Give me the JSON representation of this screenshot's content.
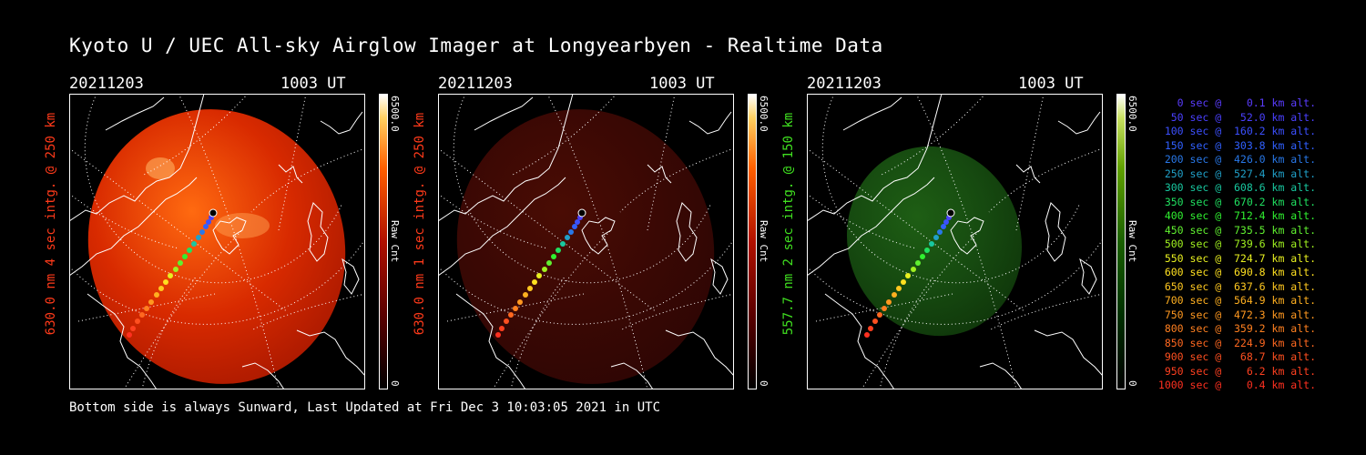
{
  "title": "Kyoto U / UEC All-sky Airglow Imager at Longyearbyen - Realtime Data",
  "panels": [
    {
      "date": "20211203",
      "time": "1003 UT",
      "ylabel": "630.0 nm 4 sec intg. @ 250 km",
      "ylabel_color": "#ff3a1a",
      "cbar_max": "6500.0",
      "cbar_min": "0",
      "cbar_unit": "Raw Cnt",
      "colormap": "red-bright"
    },
    {
      "date": "20211203",
      "time": "1003 UT",
      "ylabel": "630.0 nm 1 sec intg. @ 250 km",
      "ylabel_color": "#ff3a1a",
      "cbar_max": "6500.0",
      "cbar_min": "0",
      "cbar_unit": "Raw Cnt",
      "colormap": "red-dim"
    },
    {
      "date": "20211203",
      "time": "1003 UT",
      "ylabel": "557.7 nm 2 sec intg. @ 150 km",
      "ylabel_color": "#40e020",
      "cbar_max": "6500.0",
      "cbar_min": "0",
      "cbar_unit": "Raw Cnt",
      "colormap": "green"
    }
  ],
  "footer": "Bottom side is always Sunward, Last Updated at Fri Dec  3 10:03:05 2021 in UTC",
  "legend": [
    {
      "text": "   0 sec @    0.1 km alt.",
      "color": "#5a3cff"
    },
    {
      "text": "  50 sec @   52.0 km alt.",
      "color": "#4a40ff"
    },
    {
      "text": " 100 sec @  160.2 km alt.",
      "color": "#3c50ff"
    },
    {
      "text": " 150 sec @  303.8 km alt.",
      "color": "#3060ff"
    },
    {
      "text": " 200 sec @  426.0 km alt.",
      "color": "#2878e8"
    },
    {
      "text": " 250 sec @  527.4 km alt.",
      "color": "#20a0c8"
    },
    {
      "text": " 300 sec @  608.6 km alt.",
      "color": "#18c8a0"
    },
    {
      "text": " 350 sec @  670.2 km alt.",
      "color": "#20e060"
    },
    {
      "text": " 400 sec @  712.4 km alt.",
      "color": "#30f030"
    },
    {
      "text": " 450 sec @  735.5 km alt.",
      "color": "#60f030"
    },
    {
      "text": " 500 sec @  739.6 km alt.",
      "color": "#a0f020"
    },
    {
      "text": " 550 sec @  724.7 km alt.",
      "color": "#e8f020"
    },
    {
      "text": " 600 sec @  690.8 km alt.",
      "color": "#ffe020"
    },
    {
      "text": " 650 sec @  637.6 km alt.",
      "color": "#ffc820"
    },
    {
      "text": " 700 sec @  564.9 km alt.",
      "color": "#ffb020"
    },
    {
      "text": " 750 sec @  472.3 km alt.",
      "color": "#ff9820"
    },
    {
      "text": " 800 sec @  359.2 km alt.",
      "color": "#ff8020"
    },
    {
      "text": " 850 sec @  224.9 km alt.",
      "color": "#ff6820"
    },
    {
      "text": " 900 sec @   68.7 km alt.",
      "color": "#ff5020"
    },
    {
      "text": " 950 sec @    6.2 km alt.",
      "color": "#ff4020"
    },
    {
      "text": "1000 sec @    0.4 km alt.",
      "color": "#ff3020"
    }
  ]
}
